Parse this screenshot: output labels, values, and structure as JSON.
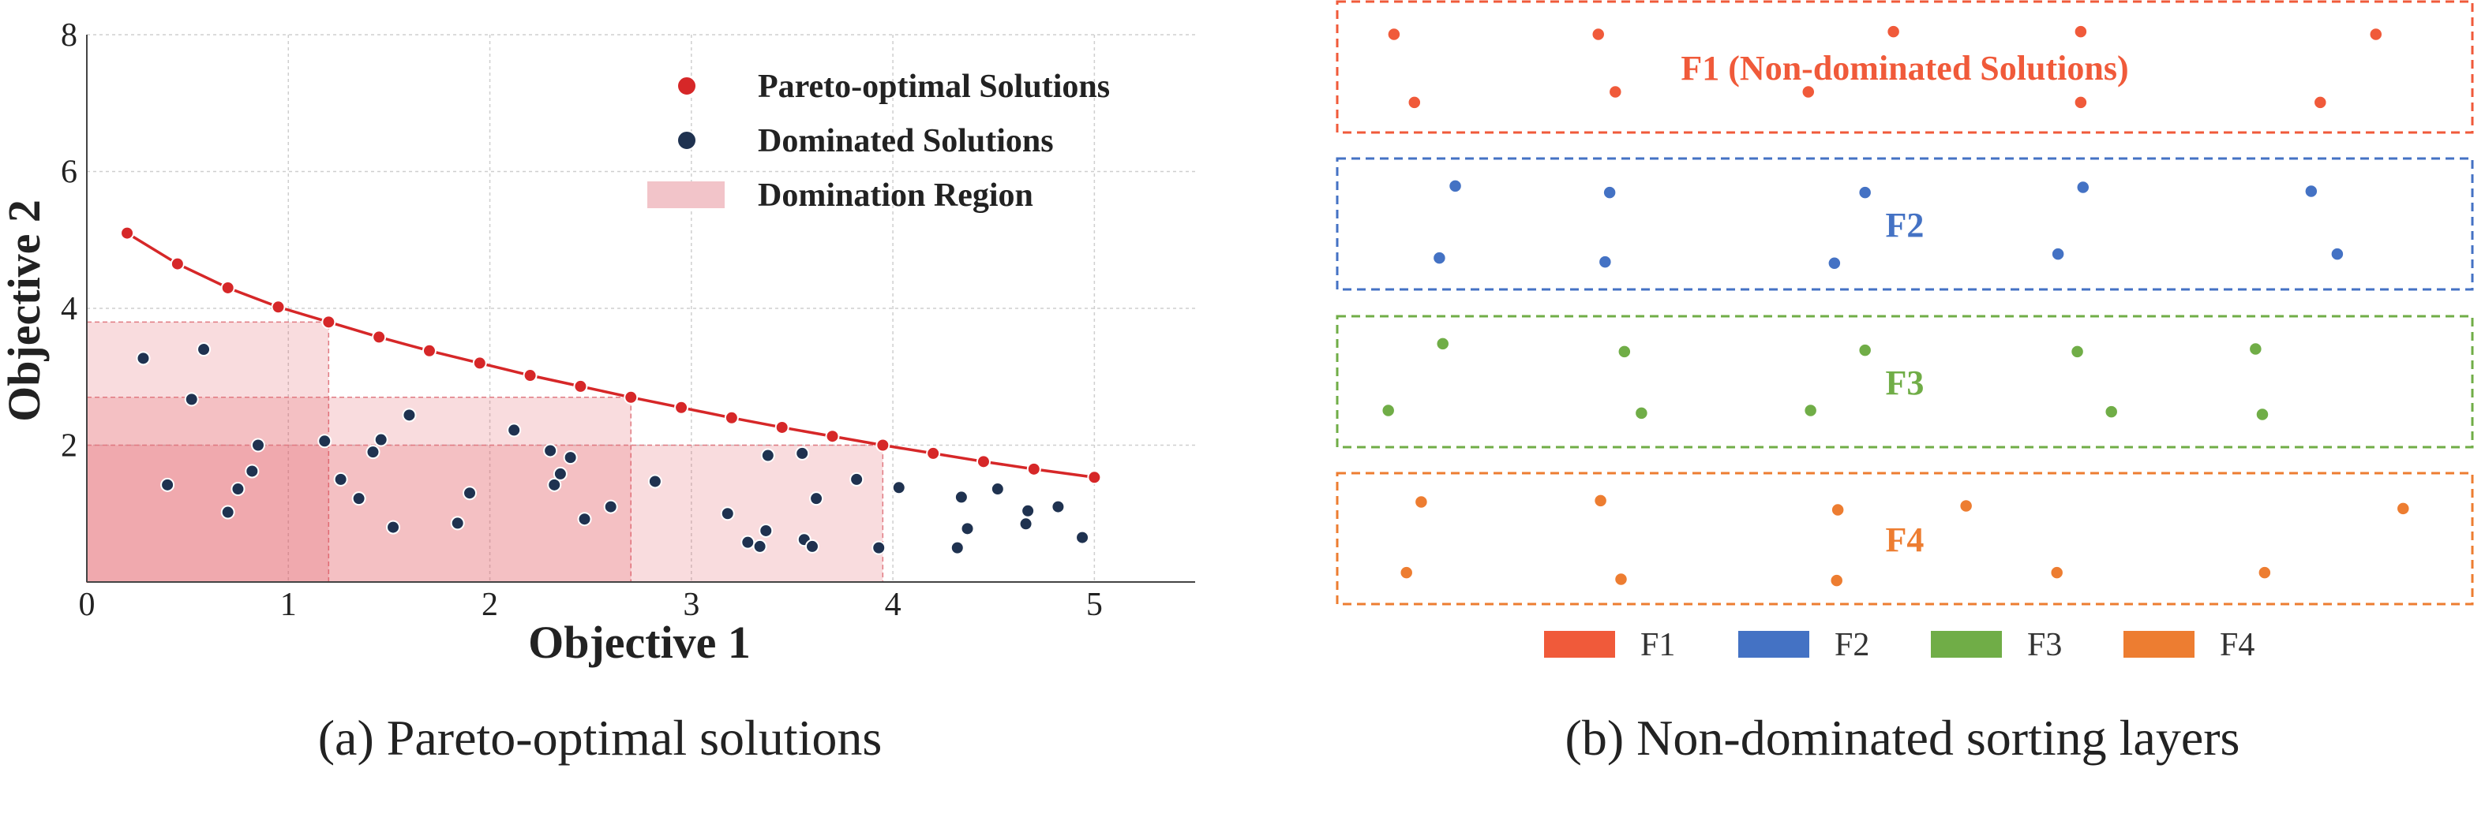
{
  "chart_data": [
    {
      "type": "scatter",
      "caption": "(a) Pareto-optimal solutions",
      "xlabel": "Objective 1",
      "ylabel": "Objective 2",
      "xlim": [
        0,
        5.5
      ],
      "ylim": [
        0,
        8
      ],
      "xticks": [
        "0",
        "1",
        "2",
        "3",
        "4",
        "5"
      ],
      "yticks": [
        "2",
        "4",
        "6",
        "8"
      ],
      "grid": true,
      "legend_position": "top-right",
      "legend": [
        {
          "label": "Pareto-optimal Solutions",
          "kind": "marker",
          "color": "#d62728"
        },
        {
          "label": "Dominated Solutions",
          "kind": "marker",
          "color": "#1f3250"
        },
        {
          "label": "Domination Region",
          "kind": "patch",
          "color": "#f2c4c9"
        }
      ],
      "series": [
        {
          "name": "Pareto-optimal Solutions",
          "color": "#d62728",
          "line": true,
          "points": [
            [
              0.2,
              5.1
            ],
            [
              0.45,
              4.65
            ],
            [
              0.7,
              4.3
            ],
            [
              0.95,
              4.02
            ],
            [
              1.2,
              3.8
            ],
            [
              1.45,
              3.58
            ],
            [
              1.7,
              3.38
            ],
            [
              1.95,
              3.2
            ],
            [
              2.2,
              3.02
            ],
            [
              2.45,
              2.86
            ],
            [
              2.7,
              2.7
            ],
            [
              2.95,
              2.55
            ],
            [
              3.2,
              2.4
            ],
            [
              3.45,
              2.26
            ],
            [
              3.7,
              2.13
            ],
            [
              3.95,
              2.0
            ],
            [
              4.2,
              1.88
            ],
            [
              4.45,
              1.76
            ],
            [
              4.7,
              1.65
            ],
            [
              5.0,
              1.53
            ]
          ]
        },
        {
          "name": "Dominated Solutions",
          "color": "#1f3250",
          "line": false,
          "points": [
            [
              0.28,
              3.27
            ],
            [
              0.4,
              1.42
            ],
            [
              0.52,
              2.67
            ],
            [
              0.58,
              3.4
            ],
            [
              0.7,
              1.02
            ],
            [
              0.75,
              1.36
            ],
            [
              0.82,
              1.62
            ],
            [
              0.85,
              2.0
            ],
            [
              1.18,
              2.06
            ],
            [
              1.26,
              1.5
            ],
            [
              1.35,
              1.22
            ],
            [
              1.42,
              1.9
            ],
            [
              1.46,
              2.08
            ],
            [
              1.52,
              0.8
            ],
            [
              1.6,
              2.44
            ],
            [
              1.84,
              0.86
            ],
            [
              1.9,
              1.3
            ],
            [
              2.12,
              2.22
            ],
            [
              2.3,
              1.92
            ],
            [
              2.32,
              1.42
            ],
            [
              2.35,
              1.58
            ],
            [
              2.4,
              1.82
            ],
            [
              2.47,
              0.92
            ],
            [
              2.6,
              1.1
            ],
            [
              2.82,
              1.47
            ],
            [
              3.18,
              1.0
            ],
            [
              3.28,
              0.58
            ],
            [
              3.34,
              0.52
            ],
            [
              3.37,
              0.75
            ],
            [
              3.38,
              1.85
            ],
            [
              3.55,
              1.88
            ],
            [
              3.56,
              0.62
            ],
            [
              3.6,
              0.52
            ],
            [
              3.62,
              1.22
            ],
            [
              3.82,
              1.5
            ],
            [
              3.93,
              0.5
            ],
            [
              4.03,
              1.38
            ],
            [
              4.32,
              0.5
            ],
            [
              4.34,
              1.24
            ],
            [
              4.37,
              0.78
            ],
            [
              4.52,
              1.36
            ],
            [
              4.66,
              0.85
            ],
            [
              4.67,
              1.04
            ],
            [
              4.82,
              1.1
            ],
            [
              4.94,
              0.65
            ]
          ]
        }
      ],
      "domination_regions": [
        {
          "x_max": 1.2,
          "y_max": 3.8
        },
        {
          "x_max": 2.7,
          "y_max": 2.7
        },
        {
          "x_max": 3.95,
          "y_max": 2.0
        }
      ]
    },
    {
      "type": "scatter",
      "caption": "(b) Non-dominated sorting layers",
      "legend_position": "bottom",
      "layers": [
        {
          "name": "F1",
          "label": "F1 (Non-dominated Solutions)",
          "color": "#f05a3a",
          "points": [
            [
              0.05,
              0.25
            ],
            [
              0.23,
              0.25
            ],
            [
              0.49,
              0.23
            ],
            [
              0.655,
              0.23
            ],
            [
              0.915,
              0.25
            ],
            [
              0.068,
              0.77
            ],
            [
              0.245,
              0.69
            ],
            [
              0.415,
              0.69
            ],
            [
              0.655,
              0.77
            ],
            [
              0.866,
              0.77
            ]
          ]
        },
        {
          "name": "F2",
          "label": "F2",
          "color": "#4472c4",
          "points": [
            [
              0.104,
              0.21
            ],
            [
              0.24,
              0.26
            ],
            [
              0.465,
              0.26
            ],
            [
              0.657,
              0.22
            ],
            [
              0.858,
              0.25
            ],
            [
              0.09,
              0.76
            ],
            [
              0.236,
              0.79
            ],
            [
              0.438,
              0.8
            ],
            [
              0.635,
              0.73
            ],
            [
              0.881,
              0.73
            ]
          ]
        },
        {
          "name": "F3",
          "label": "F3",
          "color": "#70ad47",
          "points": [
            [
              0.093,
              0.21
            ],
            [
              0.253,
              0.27
            ],
            [
              0.465,
              0.26
            ],
            [
              0.652,
              0.27
            ],
            [
              0.809,
              0.25
            ],
            [
              0.045,
              0.72
            ],
            [
              0.268,
              0.74
            ],
            [
              0.417,
              0.72
            ],
            [
              0.682,
              0.73
            ],
            [
              0.815,
              0.75
            ]
          ]
        },
        {
          "name": "F4",
          "label": "F4",
          "color": "#ed7d31",
          "points": [
            [
              0.074,
              0.22
            ],
            [
              0.232,
              0.21
            ],
            [
              0.441,
              0.28
            ],
            [
              0.554,
              0.25
            ],
            [
              0.939,
              0.27
            ],
            [
              0.061,
              0.76
            ],
            [
              0.25,
              0.81
            ],
            [
              0.44,
              0.82
            ],
            [
              0.634,
              0.76
            ],
            [
              0.817,
              0.76
            ]
          ]
        }
      ]
    }
  ]
}
